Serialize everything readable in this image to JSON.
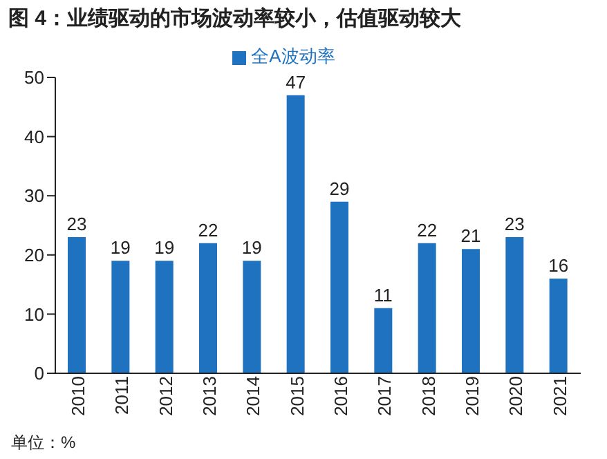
{
  "chart_data": {
    "type": "bar",
    "title": "图 4：业绩驱动的市场波动率较小，估值驱动较大",
    "categories": [
      "2010",
      "2011",
      "2012",
      "2013",
      "2014",
      "2015",
      "2016",
      "2017",
      "2018",
      "2019",
      "2020",
      "2021"
    ],
    "series": [
      {
        "name": "全A波动率",
        "color": "#1f72c0",
        "values": [
          23,
          19,
          19,
          22,
          19,
          47,
          29,
          11,
          22,
          21,
          23,
          16
        ]
      }
    ],
    "ylim": [
      0,
      50
    ],
    "yticks": [
      0,
      10,
      20,
      30,
      40,
      50
    ],
    "grid": false,
    "legend": "top",
    "data_labels": true,
    "annotations": [
      "单位：%"
    ]
  }
}
